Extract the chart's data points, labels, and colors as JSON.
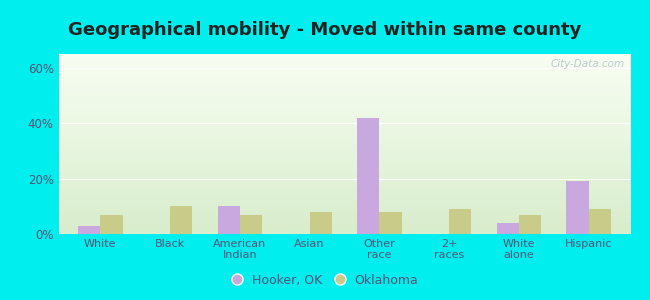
{
  "title": "Geographical mobility - Moved within same county",
  "categories": [
    "White",
    "Black",
    "American\nIndian",
    "Asian",
    "Other\nrace",
    "2+\nraces",
    "White\nalone",
    "Hispanic"
  ],
  "hooker_values": [
    3,
    0,
    10,
    0,
    42,
    0,
    4,
    19
  ],
  "oklahoma_values": [
    7,
    10,
    7,
    8,
    8,
    9,
    7,
    9
  ],
  "hooker_color": "#c9a8e0",
  "oklahoma_color": "#c8cc88",
  "background_color": "#00eeee",
  "title_color": "#222222",
  "title_fontsize": 13,
  "tick_color": "#555577",
  "ylabel_ticks": [
    "0%",
    "20%",
    "40%",
    "60%"
  ],
  "yticks": [
    0,
    20,
    40,
    60
  ],
  "ylim": [
    0,
    65
  ],
  "bar_width": 0.32,
  "legend_labels": [
    "Hooker, OK",
    "Oklahoma"
  ],
  "watermark": "City-Data.com"
}
